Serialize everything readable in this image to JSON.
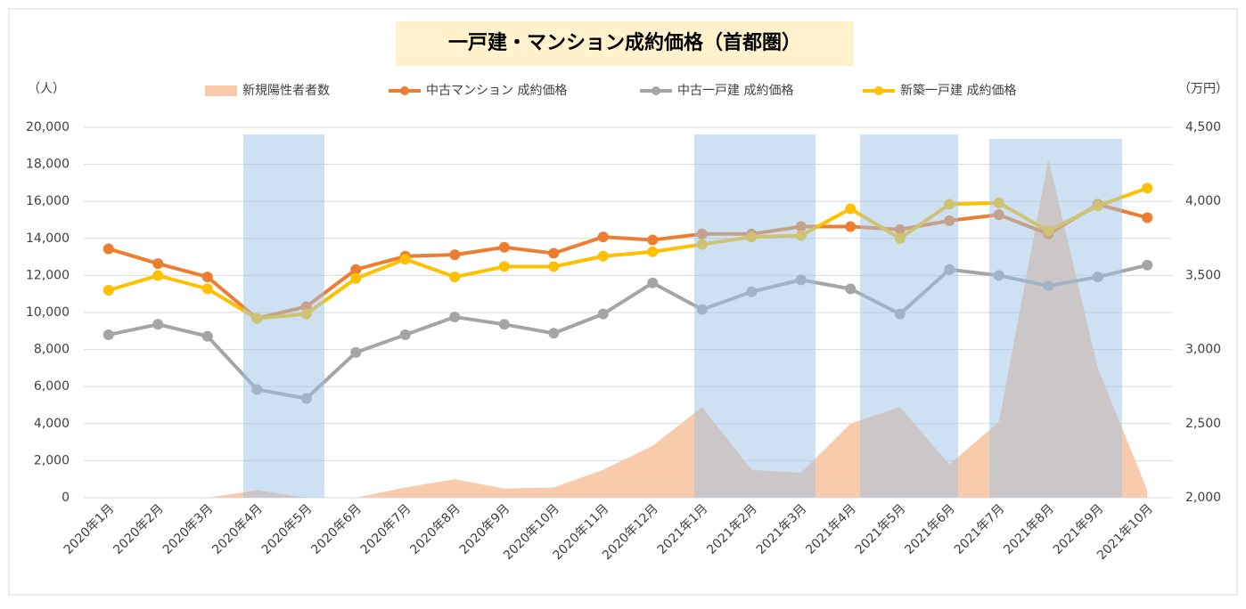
{
  "chart_data": {
    "type": "combo",
    "title": "一戸建・マンション成約価格（首都圏）",
    "ylabel": "（人）",
    "y2label": "（万円）",
    "categories": [
      "2020年1月",
      "2020年2月",
      "2020年3月",
      "2020年4月",
      "2020年5月",
      "2020年6月",
      "2020年7月",
      "2020年8月",
      "2020年9月",
      "2020年10月",
      "2020年11月",
      "2020年12月",
      "2021年1月",
      "2021年2月",
      "2021年3月",
      "2021年4月",
      "2021年5月",
      "2021年6月",
      "2021年7月",
      "2021年8月",
      "2021年9月",
      "2021年10月"
    ],
    "ylim": [
      0,
      20000
    ],
    "yticks": [
      0,
      {
        "value": 2000,
        "label": "2,000"
      },
      {
        "value": 4000,
        "label": "4,000"
      },
      {
        "value": 6000,
        "label": "6,000"
      },
      {
        "value": 8000,
        "label": "8,000"
      },
      {
        "value": 10000,
        "label": "10,000"
      },
      {
        "value": 12000,
        "label": "12,000"
      },
      {
        "value": 14000,
        "label": "14,000"
      },
      {
        "value": 16000,
        "label": "16,000"
      },
      {
        "value": 18000,
        "label": "18,000"
      },
      {
        "value": 20000,
        "label": "20,000"
      }
    ],
    "y2lim": [
      2000,
      4500
    ],
    "y2ticks": [
      {
        "value": 2000,
        "label": "2,000"
      },
      {
        "value": 2500,
        "label": "2,500"
      },
      {
        "value": 3000,
        "label": "3,000"
      },
      {
        "value": 3500,
        "label": "3,500"
      },
      {
        "value": 4000,
        "label": "4,000"
      },
      {
        "value": 4500,
        "label": "4,500"
      }
    ],
    "grid": true,
    "legend": "top",
    "series": [
      {
        "name": "新規陽性者者数",
        "kind": "area",
        "color": "#f8cbad",
        "values": [
          0,
          0,
          0,
          400,
          0,
          0,
          550,
          1000,
          500,
          550,
          1500,
          2800,
          4900,
          1500,
          1350,
          4000,
          4900,
          1800,
          4100,
          18300,
          7000,
          400
        ]
      },
      {
        "name": "中古マンション 成約価格",
        "kind": "line",
        "axis": "y2",
        "color": "#ed7d31",
        "values": [
          3680,
          3580,
          3490,
          3210,
          3290,
          3540,
          3630,
          3640,
          3690,
          3650,
          3760,
          3740,
          3780,
          3780,
          3830,
          3830,
          3810,
          3870,
          3910,
          3780,
          3980,
          3890
        ]
      },
      {
        "name": "中古一戸建 成約価格",
        "kind": "line",
        "axis": "y2",
        "color": "#a5a5a5",
        "values": [
          3100,
          3170,
          3090,
          2730,
          2670,
          2980,
          3100,
          3220,
          3170,
          3110,
          3240,
          3450,
          3270,
          3390,
          3470,
          3410,
          3240,
          3540,
          3500,
          3430,
          3490,
          3570
        ]
      },
      {
        "name": "新築一戸建 成約価格",
        "kind": "line",
        "axis": "y2",
        "color": "#ffc000",
        "values": [
          3400,
          3500,
          3410,
          3210,
          3240,
          3480,
          3610,
          3490,
          3560,
          3560,
          3630,
          3660,
          3710,
          3760,
          3770,
          3950,
          3750,
          3980,
          3990,
          3800,
          3970,
          4090
        ]
      }
    ]
  }
}
